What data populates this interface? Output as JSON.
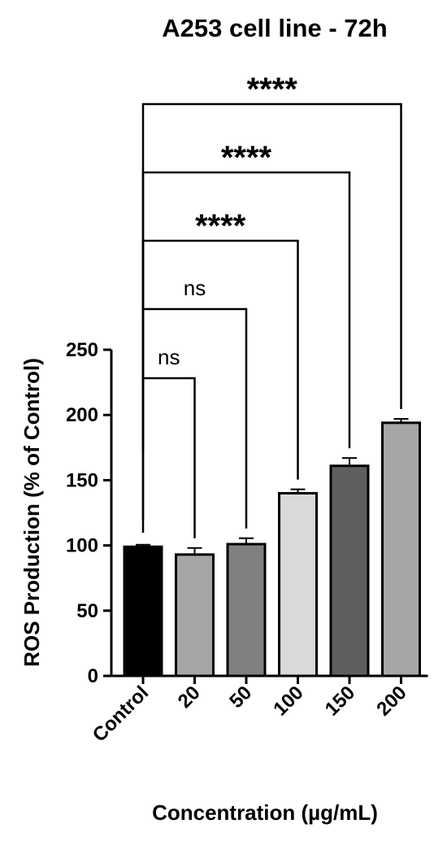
{
  "chart_data": {
    "type": "bar",
    "title": "A253 cell line - 72h",
    "xlabel": "Concentration (µg/mL)",
    "ylabel": "ROS Production (% of Control)",
    "ylim": [
      0,
      250
    ],
    "yticks": [
      0,
      50,
      100,
      150,
      200,
      250
    ],
    "categories": [
      "Control",
      "20",
      "50",
      "100",
      "150",
      "200"
    ],
    "values": [
      99,
      93,
      101,
      140,
      161,
      194
    ],
    "errors": [
      1.5,
      5,
      4.5,
      3,
      6,
      3
    ],
    "colors": [
      "#000000",
      "#a6a6a8",
      "#808080",
      "#d9d9d9",
      "#5f5f5f",
      "#a6a6a8"
    ],
    "grid": false,
    "comparisons": [
      {
        "from": "Control",
        "to": "20",
        "label": "ns"
      },
      {
        "from": "Control",
        "to": "50",
        "label": "ns"
      },
      {
        "from": "Control",
        "to": "100",
        "label": "****"
      },
      {
        "from": "Control",
        "to": "150",
        "label": "****"
      },
      {
        "from": "Control",
        "to": "200",
        "label": "****"
      }
    ]
  }
}
